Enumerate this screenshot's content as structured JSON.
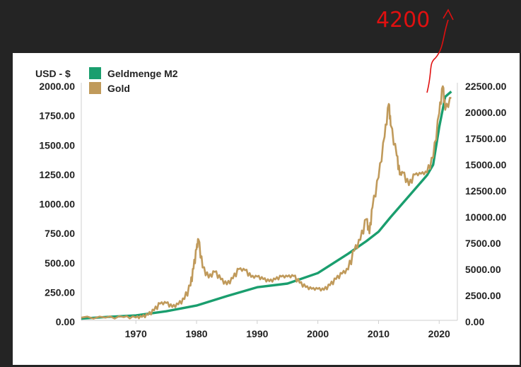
{
  "chart_data": {
    "type": "line",
    "y_left_unit": "USD - $",
    "ylim_left": [
      0,
      2000
    ],
    "ylim_right": [
      0,
      22500
    ],
    "y_ticks_left": [
      "2000.00",
      "1750.00",
      "1500.00",
      "1250.00",
      "1000.00",
      "750.00",
      "500.00",
      "250.00",
      "0.00"
    ],
    "y_ticks_right": [
      "22500.00",
      "20000.00",
      "17500.00",
      "15000.00",
      "12500.00",
      "10000.00",
      "7500.00",
      "5000.00",
      "2500.00",
      "0.00"
    ],
    "xlim": [
      1961,
      2023
    ],
    "x_ticks": [
      "1970",
      "1980",
      "1990",
      "2000",
      "2010",
      "2020"
    ],
    "series": [
      {
        "name": "Geldmenge M2",
        "color": "#1a9e6e",
        "axis": "right",
        "x": [
          1961,
          1965,
          1970,
          1975,
          1980,
          1985,
          1990,
          1995,
          2000,
          2005,
          2008,
          2010,
          2012,
          2015,
          2018,
          2019,
          2020,
          2021,
          2022
        ],
        "values": [
          300,
          450,
          600,
          1000,
          1550,
          2450,
          3300,
          3650,
          4650,
          6500,
          7700,
          8600,
          10000,
          12000,
          14000,
          15000,
          18600,
          21500,
          22000
        ]
      },
      {
        "name": "Gold",
        "color": "#c09a5b",
        "axis": "left",
        "x": [
          1961,
          1965,
          1968,
          1970,
          1971,
          1972,
          1973,
          1974,
          1975,
          1976,
          1977,
          1978,
          1979,
          1979.5,
          1980,
          1980.3,
          1981,
          1982,
          1983,
          1984,
          1985,
          1986,
          1987,
          1988,
          1989,
          1990,
          1991,
          1992,
          1993,
          1994,
          1995,
          1996,
          1997,
          1998,
          1999,
          2000,
          2001,
          2002,
          2003,
          2004,
          2005,
          2006,
          2007,
          2008,
          2008.5,
          2009,
          2010,
          2011,
          2011.7,
          2012,
          2013,
          2013.5,
          2014,
          2015,
          2016,
          2017,
          2018,
          2019,
          2020,
          2020.6,
          2021,
          2022
        ],
        "values": [
          35,
          35,
          39,
          36,
          41,
          58,
          97,
          154,
          160,
          125,
          148,
          193,
          307,
          450,
          615,
          700,
          460,
          375,
          424,
          360,
          317,
          368,
          447,
          437,
          381,
          383,
          362,
          344,
          360,
          384,
          384,
          388,
          331,
          294,
          279,
          279,
          271,
          310,
          363,
          409,
          444,
          603,
          695,
          872,
          750,
          972,
          1225,
          1570,
          1850,
          1669,
          1411,
          1250,
          1266,
          1160,
          1250,
          1257,
          1268,
          1393,
          1770,
          2000,
          1800,
          1900
        ]
      }
    ],
    "annotation": "4200"
  }
}
